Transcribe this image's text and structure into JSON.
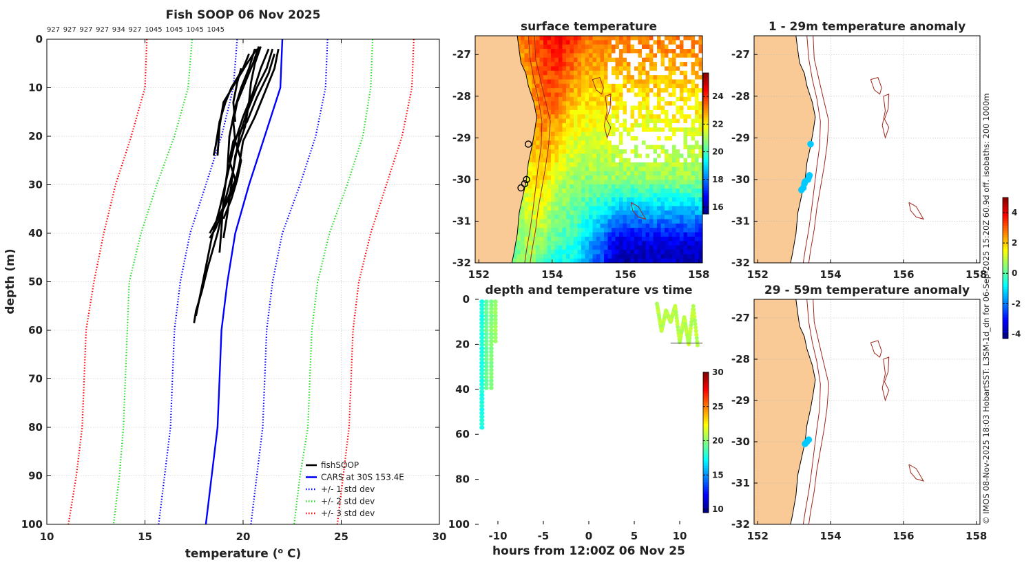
{
  "colors": {
    "fish": "#000000",
    "cars": "#0000ff",
    "std1": "#0000ff",
    "std2": "#22dd22",
    "std3": "#ff0000",
    "land": "#f9c996",
    "isobath": "#a0251b",
    "coast": "#000000",
    "grid": "#bbbbbb"
  },
  "side_caption": "© IMOS 08-Nov-2025 18:03 HobartSST: L3SM-1d_dn for 06-Sep-2025 15:20Z 60.9d off. isobaths: 200  1000m",
  "chart_data": [
    {
      "id": "profile",
      "type": "line",
      "title": "Fish SOOP 06 Nov 2025",
      "probe_ids": [
        "927",
        "927",
        "927",
        "927",
        "934",
        "927",
        "1045",
        "1045",
        "1045",
        "1045"
      ],
      "xlabel": "temperature (",
      "xlabel_sup": "o",
      "xlabel_end": " C)",
      "ylabel": "depth (m)",
      "xlim": [
        10,
        30
      ],
      "ylim": [
        0,
        100
      ],
      "xticks": [
        "10",
        "15",
        "20",
        "25",
        "30"
      ],
      "yticks": [
        "0",
        "10",
        "20",
        "30",
        "40",
        "50",
        "60",
        "70",
        "80",
        "90",
        "100"
      ],
      "legend": [
        "fishSOOP",
        "CARS at 30S 153.4E",
        "+/- 1 std dev",
        "+/- 2 std dev",
        "+/- 3 std dev"
      ],
      "legend_position": "bottom-right",
      "cars": [
        [
          22.0,
          0
        ],
        [
          21.9,
          10
        ],
        [
          21.1,
          20
        ],
        [
          20.3,
          30
        ],
        [
          19.6,
          40
        ],
        [
          19.2,
          50
        ],
        [
          18.9,
          60
        ],
        [
          18.8,
          70
        ],
        [
          18.7,
          80
        ],
        [
          18.4,
          90
        ],
        [
          18.1,
          100
        ]
      ],
      "std1_low": [
        [
          19.7,
          0
        ],
        [
          19.5,
          10
        ],
        [
          18.9,
          20
        ],
        [
          18.1,
          30
        ],
        [
          17.3,
          40
        ],
        [
          16.8,
          50
        ],
        [
          16.5,
          60
        ],
        [
          16.4,
          70
        ],
        [
          16.3,
          80
        ],
        [
          16.0,
          90
        ],
        [
          15.7,
          100
        ]
      ],
      "std1_high": [
        [
          24.3,
          0
        ],
        [
          24.2,
          10
        ],
        [
          23.7,
          20
        ],
        [
          22.9,
          30
        ],
        [
          22.0,
          40
        ],
        [
          21.5,
          50
        ],
        [
          21.2,
          60
        ],
        [
          21.1,
          70
        ],
        [
          21.0,
          80
        ],
        [
          20.7,
          90
        ],
        [
          20.4,
          100
        ]
      ],
      "std2_low": [
        [
          17.4,
          0
        ],
        [
          17.2,
          10
        ],
        [
          16.5,
          20
        ],
        [
          15.6,
          30
        ],
        [
          14.8,
          40
        ],
        [
          14.2,
          50
        ],
        [
          14.1,
          60
        ],
        [
          14.0,
          70
        ],
        [
          13.9,
          80
        ],
        [
          13.7,
          90
        ],
        [
          13.4,
          100
        ]
      ],
      "std2_high": [
        [
          26.6,
          0
        ],
        [
          26.5,
          10
        ],
        [
          26.1,
          20
        ],
        [
          25.3,
          30
        ],
        [
          24.4,
          40
        ],
        [
          23.8,
          50
        ],
        [
          23.5,
          60
        ],
        [
          23.4,
          70
        ],
        [
          23.3,
          80
        ],
        [
          22.9,
          90
        ],
        [
          22.6,
          100
        ]
      ],
      "std3_low": [
        [
          15.1,
          0
        ],
        [
          15.0,
          10
        ],
        [
          14.3,
          20
        ],
        [
          13.5,
          30
        ],
        [
          12.9,
          40
        ],
        [
          12.4,
          50
        ],
        [
          12.0,
          60
        ],
        [
          11.9,
          70
        ],
        [
          11.8,
          80
        ],
        [
          11.5,
          90
        ],
        [
          11.1,
          100
        ]
      ],
      "std3_high": [
        [
          28.7,
          0
        ],
        [
          28.6,
          10
        ],
        [
          28.1,
          20
        ],
        [
          27.3,
          30
        ],
        [
          26.5,
          40
        ],
        [
          25.9,
          50
        ],
        [
          25.6,
          60
        ],
        [
          25.5,
          70
        ],
        [
          25.4,
          80
        ],
        [
          25.1,
          90
        ],
        [
          24.8,
          100
        ]
      ],
      "fish_profiles": [
        [
          [
            20.9,
            1.5
          ],
          [
            20.6,
            5
          ],
          [
            20.4,
            9
          ],
          [
            20.3,
            13
          ],
          [
            20.1,
            18
          ],
          [
            19.6,
            24
          ],
          [
            19.4,
            30
          ],
          [
            19.2,
            36
          ],
          [
            19.0,
            41
          ]
        ],
        [
          [
            20.6,
            2
          ],
          [
            20.3,
            6
          ],
          [
            19.9,
            10
          ],
          [
            19.6,
            14
          ],
          [
            19.3,
            20
          ],
          [
            19.2,
            27
          ],
          [
            19.0,
            33
          ],
          [
            18.9,
            39
          ],
          [
            18.8,
            44
          ]
        ],
        [
          [
            20.7,
            2
          ],
          [
            20.2,
            5
          ],
          [
            19.6,
            9
          ],
          [
            19.0,
            13
          ],
          [
            18.8,
            18
          ],
          [
            18.7,
            24
          ]
        ],
        [
          [
            20.3,
            3
          ],
          [
            20.0,
            6
          ],
          [
            19.4,
            10
          ],
          [
            19.1,
            13
          ],
          [
            18.8,
            17
          ],
          [
            18.6,
            22
          ],
          [
            18.5,
            24
          ]
        ],
        [
          [
            21.5,
            2
          ],
          [
            21.2,
            6
          ],
          [
            20.7,
            10
          ],
          [
            20.2,
            15
          ],
          [
            19.8,
            20
          ],
          [
            19.5,
            27
          ],
          [
            19.1,
            33
          ],
          [
            18.7,
            40
          ],
          [
            18.2,
            47
          ],
          [
            17.9,
            52
          ],
          [
            17.6,
            56
          ],
          [
            17.5,
            58.5
          ]
        ],
        [
          [
            21.3,
            2
          ],
          [
            20.9,
            6
          ],
          [
            20.5,
            11
          ],
          [
            20.0,
            16
          ],
          [
            19.6,
            21
          ],
          [
            19.2,
            28
          ],
          [
            18.8,
            35
          ],
          [
            18.4,
            41
          ],
          [
            18.1,
            47
          ],
          [
            17.8,
            53
          ],
          [
            17.6,
            57
          ]
        ],
        [
          [
            21.8,
            2
          ],
          [
            21.6,
            6
          ],
          [
            21.1,
            11
          ],
          [
            20.6,
            16
          ],
          [
            20.0,
            21
          ],
          [
            19.8,
            26
          ],
          [
            19.5,
            31
          ],
          [
            19.0,
            35
          ],
          [
            18.6,
            39
          ],
          [
            18.3,
            41
          ]
        ],
        [
          [
            21.6,
            3
          ],
          [
            21.3,
            7
          ],
          [
            20.7,
            12
          ],
          [
            20.2,
            17
          ],
          [
            19.5,
            21
          ],
          [
            19.3,
            25
          ],
          [
            19.6,
            29
          ],
          [
            19.2,
            33
          ],
          [
            18.7,
            37
          ],
          [
            18.3,
            40
          ]
        ],
        [
          [
            20.8,
            1.5
          ],
          [
            20.5,
            5
          ],
          [
            20.1,
            9
          ],
          [
            19.7,
            13
          ],
          [
            19.5,
            17
          ],
          [
            19.6,
            21
          ],
          [
            19.9,
            25
          ],
          [
            19.7,
            29
          ],
          [
            19.4,
            33
          ],
          [
            19.0,
            37
          ]
        ],
        [
          [
            19.9,
            6
          ],
          [
            19.7,
            9
          ],
          [
            19.5,
            13
          ],
          [
            19.6,
            17
          ]
        ]
      ]
    },
    {
      "id": "sst",
      "type": "heatmap",
      "title": "surface temperature",
      "xticks": [
        "152",
        "154",
        "156",
        "158"
      ],
      "yticks": [
        "-27",
        "-28",
        "-29",
        "-30",
        "-31",
        "-32"
      ],
      "xlim": [
        151.9,
        158.1
      ],
      "ylim": [
        -32,
        -26.55
      ],
      "colorbar": {
        "min": 15.5,
        "max": 25.7,
        "ticks": [
          "16",
          "18",
          "20",
          "22",
          "24"
        ]
      },
      "stations": [
        [
          153.35,
          -29.15
        ],
        [
          153.3,
          -30.0
        ],
        [
          153.25,
          -30.1
        ],
        [
          153.15,
          -30.2
        ]
      ]
    },
    {
      "id": "depth_time",
      "type": "scatter",
      "title": "depth and temperature vs time",
      "xlabel": "hours from 12:00Z 06 Nov 25",
      "xlim": [
        -12.5,
        12.5
      ],
      "ylim": [
        0,
        100
      ],
      "xticks": [
        "-10",
        "-5",
        "0",
        "5",
        "10"
      ],
      "yticks": [
        "0",
        "20",
        "40",
        "60",
        "80",
        "100"
      ],
      "colorbar": {
        "min": 9.5,
        "max": 30,
        "ticks": [
          "10",
          "15",
          "20",
          "25",
          "30"
        ]
      },
      "casts": [
        {
          "hours": [
            -11.8,
            -11.75,
            -11.72
          ],
          "max_depth": 58,
          "temp": 17.5
        },
        {
          "hours": [
            -11.3,
            -11.25
          ],
          "max_depth": 41,
          "temp": 19.0
        },
        {
          "hours": [
            -10.75,
            -10.7
          ],
          "max_depth": 40,
          "temp": 19.5
        },
        {
          "hours": [
            -10.3,
            -10.25
          ],
          "max_depth": 20,
          "temp": 20.0
        },
        {
          "hours": [
            7.5,
            8.0,
            8.5,
            9.0,
            9.5,
            10.0,
            10.5,
            11.0,
            11.5,
            12.0
          ],
          "depths": [
            2,
            14,
            5,
            10,
            3,
            19,
            8,
            20,
            3,
            22
          ],
          "temp": 20.5
        }
      ],
      "ref_line": {
        "hours": [
          9.0,
          12.5
        ],
        "depth": 19.5
      }
    },
    {
      "id": "anom_upper",
      "type": "scatter",
      "title": "1 - 29m temperature anomaly",
      "xticks": [
        "152",
        "154",
        "156",
        "158"
      ],
      "yticks": [
        "-27",
        "-28",
        "-29",
        "-30",
        "-31",
        "-32"
      ],
      "xlim": [
        151.9,
        158.1
      ],
      "ylim": [
        -32,
        -26.55
      ],
      "points": [
        [
          153.45,
          -29.15
        ],
        [
          153.42,
          -29.9
        ],
        [
          153.4,
          -29.95
        ],
        [
          153.38,
          -30.0
        ],
        [
          153.3,
          -30.05
        ],
        [
          153.28,
          -30.1
        ],
        [
          153.25,
          -30.2
        ],
        [
          153.2,
          -30.25
        ]
      ],
      "point_value": -1.3
    },
    {
      "id": "anom_lower",
      "type": "scatter",
      "title": "29 - 59m temperature anomaly",
      "xticks": [
        "152",
        "154",
        "156",
        "158"
      ],
      "yticks": [
        "-27",
        "-28",
        "-29",
        "-30",
        "-31",
        "-32"
      ],
      "xlim": [
        151.9,
        158.1
      ],
      "ylim": [
        -32,
        -26.55
      ],
      "points": [
        [
          153.4,
          -29.95
        ],
        [
          153.35,
          -30.0
        ],
        [
          153.3,
          -30.05
        ]
      ],
      "point_value": -1.3
    },
    {
      "id": "anom_colorbar",
      "type": "colorbar",
      "min": -4.3,
      "max": 5.0,
      "ticks": [
        "4",
        "2",
        "0",
        "-2",
        "-4"
      ]
    }
  ]
}
